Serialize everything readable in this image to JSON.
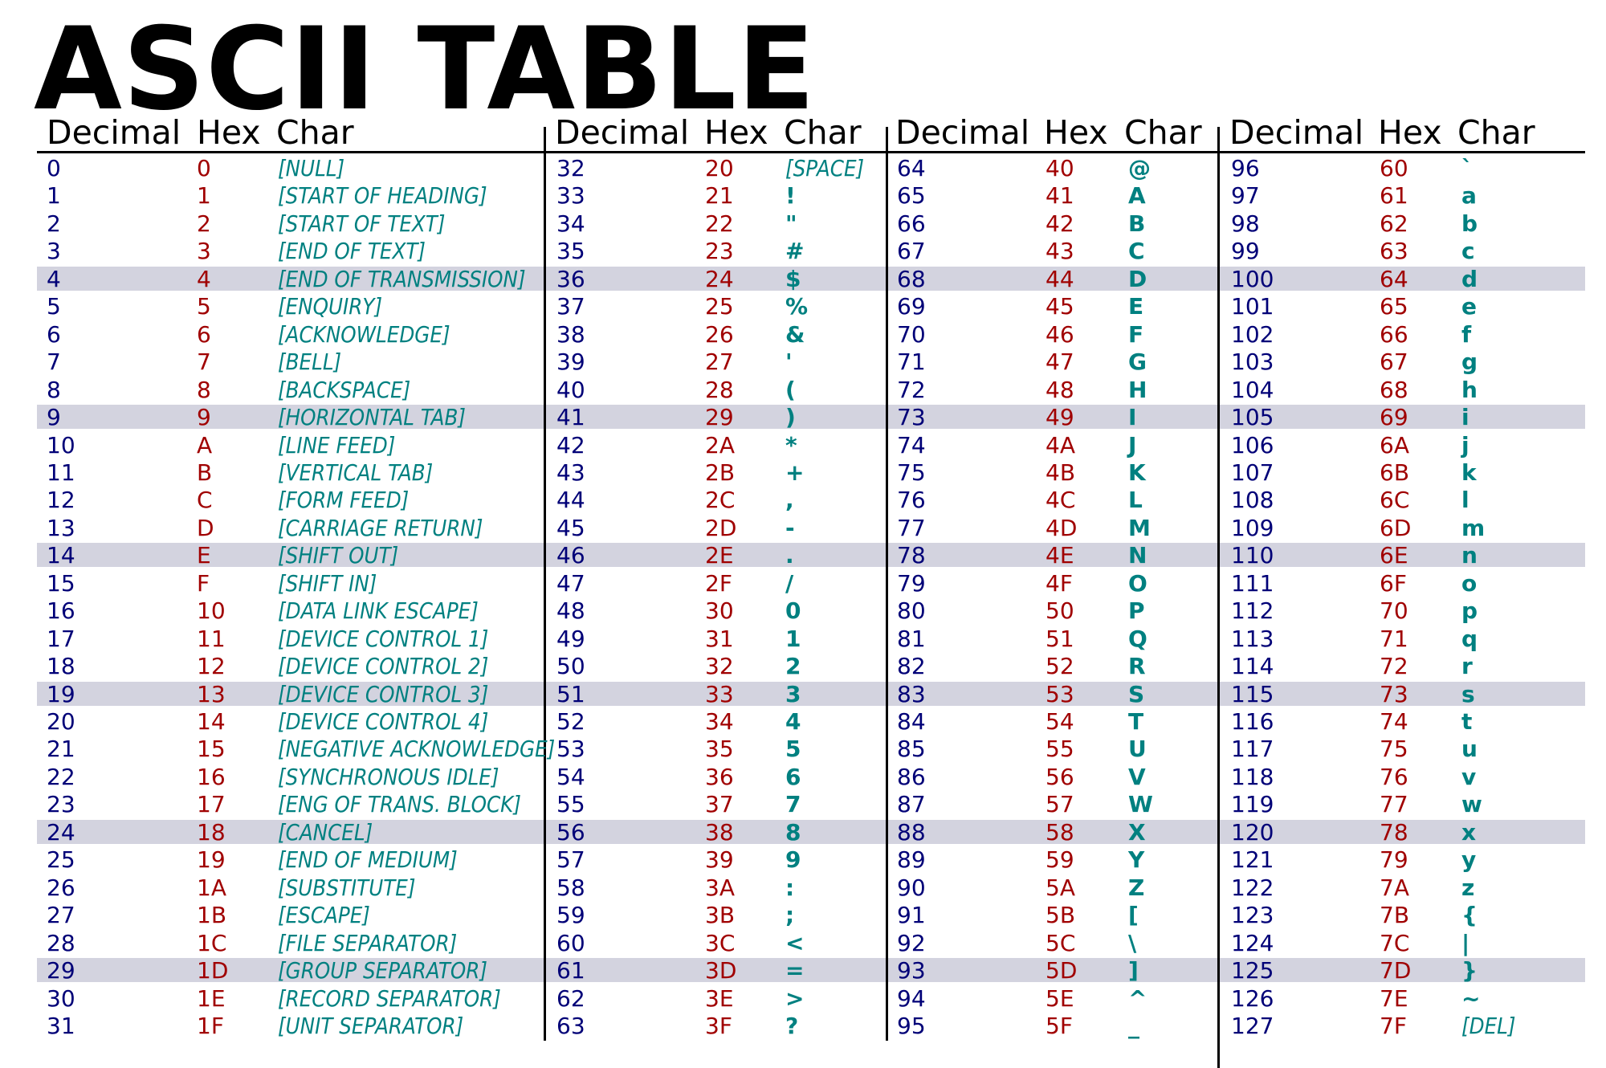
{
  "title": "ASCII TABLE",
  "colors": {
    "decimal": "#000077",
    "hex": "#a00000",
    "char": "#008080",
    "stripe": "#d3d3df"
  },
  "headers": [
    {
      "decimal": "Decimal",
      "hex": "Hex",
      "char": "Char"
    },
    {
      "decimal": "Decimal",
      "hex": "Hex",
      "char": "Char"
    },
    {
      "decimal": "Decimal",
      "hex": "Hex",
      "char": "Char"
    },
    {
      "decimal": "Decimal",
      "hex": "Hex",
      "char": "Char"
    }
  ],
  "groups": [
    [
      {
        "dec": "0",
        "hex": "0",
        "chr": "[NULL]"
      },
      {
        "dec": "1",
        "hex": "1",
        "chr": "[START OF HEADING]"
      },
      {
        "dec": "2",
        "hex": "2",
        "chr": "[START OF TEXT]"
      },
      {
        "dec": "3",
        "hex": "3",
        "chr": "[END OF TEXT]"
      },
      {
        "dec": "4",
        "hex": "4",
        "chr": "[END OF TRANSMISSION]"
      },
      {
        "dec": "5",
        "hex": "5",
        "chr": "[ENQUIRY]"
      },
      {
        "dec": "6",
        "hex": "6",
        "chr": "[ACKNOWLEDGE]"
      },
      {
        "dec": "7",
        "hex": "7",
        "chr": "[BELL]"
      },
      {
        "dec": "8",
        "hex": "8",
        "chr": "[BACKSPACE]"
      },
      {
        "dec": "9",
        "hex": "9",
        "chr": "[HORIZONTAL TAB]"
      },
      {
        "dec": "10",
        "hex": "A",
        "chr": "[LINE FEED]"
      },
      {
        "dec": "11",
        "hex": "B",
        "chr": "[VERTICAL TAB]"
      },
      {
        "dec": "12",
        "hex": "C",
        "chr": "[FORM FEED]"
      },
      {
        "dec": "13",
        "hex": "D",
        "chr": "[CARRIAGE RETURN]"
      },
      {
        "dec": "14",
        "hex": "E",
        "chr": "[SHIFT OUT]"
      },
      {
        "dec": "15",
        "hex": "F",
        "chr": "[SHIFT IN]"
      },
      {
        "dec": "16",
        "hex": "10",
        "chr": "[DATA LINK ESCAPE]"
      },
      {
        "dec": "17",
        "hex": "11",
        "chr": "[DEVICE CONTROL 1]"
      },
      {
        "dec": "18",
        "hex": "12",
        "chr": "[DEVICE CONTROL 2]"
      },
      {
        "dec": "19",
        "hex": "13",
        "chr": "[DEVICE CONTROL 3]"
      },
      {
        "dec": "20",
        "hex": "14",
        "chr": "[DEVICE CONTROL 4]"
      },
      {
        "dec": "21",
        "hex": "15",
        "chr": "[NEGATIVE ACKNOWLEDGE]"
      },
      {
        "dec": "22",
        "hex": "16",
        "chr": "[SYNCHRONOUS IDLE]"
      },
      {
        "dec": "23",
        "hex": "17",
        "chr": "[ENG OF TRANS. BLOCK]"
      },
      {
        "dec": "24",
        "hex": "18",
        "chr": "[CANCEL]"
      },
      {
        "dec": "25",
        "hex": "19",
        "chr": "[END OF MEDIUM]"
      },
      {
        "dec": "26",
        "hex": "1A",
        "chr": "[SUBSTITUTE]"
      },
      {
        "dec": "27",
        "hex": "1B",
        "chr": "[ESCAPE]"
      },
      {
        "dec": "28",
        "hex": "1C",
        "chr": "[FILE SEPARATOR]"
      },
      {
        "dec": "29",
        "hex": "1D",
        "chr": "[GROUP SEPARATOR]"
      },
      {
        "dec": "30",
        "hex": "1E",
        "chr": "[RECORD SEPARATOR]"
      },
      {
        "dec": "31",
        "hex": "1F",
        "chr": "[UNIT SEPARATOR]"
      }
    ],
    [
      {
        "dec": "32",
        "hex": "20",
        "chr": "[SPACE]"
      },
      {
        "dec": "33",
        "hex": "21",
        "chr": "!"
      },
      {
        "dec": "34",
        "hex": "22",
        "chr": "\""
      },
      {
        "dec": "35",
        "hex": "23",
        "chr": "#"
      },
      {
        "dec": "36",
        "hex": "24",
        "chr": "$"
      },
      {
        "dec": "37",
        "hex": "25",
        "chr": "%"
      },
      {
        "dec": "38",
        "hex": "26",
        "chr": "&"
      },
      {
        "dec": "39",
        "hex": "27",
        "chr": "'"
      },
      {
        "dec": "40",
        "hex": "28",
        "chr": "("
      },
      {
        "dec": "41",
        "hex": "29",
        "chr": ")"
      },
      {
        "dec": "42",
        "hex": "2A",
        "chr": "*"
      },
      {
        "dec": "43",
        "hex": "2B",
        "chr": "+"
      },
      {
        "dec": "44",
        "hex": "2C",
        "chr": ","
      },
      {
        "dec": "45",
        "hex": "2D",
        "chr": "-"
      },
      {
        "dec": "46",
        "hex": "2E",
        "chr": "."
      },
      {
        "dec": "47",
        "hex": "2F",
        "chr": "/"
      },
      {
        "dec": "48",
        "hex": "30",
        "chr": "0"
      },
      {
        "dec": "49",
        "hex": "31",
        "chr": "1"
      },
      {
        "dec": "50",
        "hex": "32",
        "chr": "2"
      },
      {
        "dec": "51",
        "hex": "33",
        "chr": "3"
      },
      {
        "dec": "52",
        "hex": "34",
        "chr": "4"
      },
      {
        "dec": "53",
        "hex": "35",
        "chr": "5"
      },
      {
        "dec": "54",
        "hex": "36",
        "chr": "6"
      },
      {
        "dec": "55",
        "hex": "37",
        "chr": "7"
      },
      {
        "dec": "56",
        "hex": "38",
        "chr": "8"
      },
      {
        "dec": "57",
        "hex": "39",
        "chr": "9"
      },
      {
        "dec": "58",
        "hex": "3A",
        "chr": ":"
      },
      {
        "dec": "59",
        "hex": "3B",
        "chr": ";"
      },
      {
        "dec": "60",
        "hex": "3C",
        "chr": "<"
      },
      {
        "dec": "61",
        "hex": "3D",
        "chr": "="
      },
      {
        "dec": "62",
        "hex": "3E",
        "chr": ">"
      },
      {
        "dec": "63",
        "hex": "3F",
        "chr": "?"
      }
    ],
    [
      {
        "dec": "64",
        "hex": "40",
        "chr": "@"
      },
      {
        "dec": "65",
        "hex": "41",
        "chr": "A"
      },
      {
        "dec": "66",
        "hex": "42",
        "chr": "B"
      },
      {
        "dec": "67",
        "hex": "43",
        "chr": "C"
      },
      {
        "dec": "68",
        "hex": "44",
        "chr": "D"
      },
      {
        "dec": "69",
        "hex": "45",
        "chr": "E"
      },
      {
        "dec": "70",
        "hex": "46",
        "chr": "F"
      },
      {
        "dec": "71",
        "hex": "47",
        "chr": "G"
      },
      {
        "dec": "72",
        "hex": "48",
        "chr": "H"
      },
      {
        "dec": "73",
        "hex": "49",
        "chr": "I"
      },
      {
        "dec": "74",
        "hex": "4A",
        "chr": "J"
      },
      {
        "dec": "75",
        "hex": "4B",
        "chr": "K"
      },
      {
        "dec": "76",
        "hex": "4C",
        "chr": "L"
      },
      {
        "dec": "77",
        "hex": "4D",
        "chr": "M"
      },
      {
        "dec": "78",
        "hex": "4E",
        "chr": "N"
      },
      {
        "dec": "79",
        "hex": "4F",
        "chr": "O"
      },
      {
        "dec": "80",
        "hex": "50",
        "chr": "P"
      },
      {
        "dec": "81",
        "hex": "51",
        "chr": "Q"
      },
      {
        "dec": "82",
        "hex": "52",
        "chr": "R"
      },
      {
        "dec": "83",
        "hex": "53",
        "chr": "S"
      },
      {
        "dec": "84",
        "hex": "54",
        "chr": "T"
      },
      {
        "dec": "85",
        "hex": "55",
        "chr": "U"
      },
      {
        "dec": "86",
        "hex": "56",
        "chr": "V"
      },
      {
        "dec": "87",
        "hex": "57",
        "chr": "W"
      },
      {
        "dec": "88",
        "hex": "58",
        "chr": "X"
      },
      {
        "dec": "89",
        "hex": "59",
        "chr": "Y"
      },
      {
        "dec": "90",
        "hex": "5A",
        "chr": "Z"
      },
      {
        "dec": "91",
        "hex": "5B",
        "chr": "["
      },
      {
        "dec": "92",
        "hex": "5C",
        "chr": "\\"
      },
      {
        "dec": "93",
        "hex": "5D",
        "chr": "]"
      },
      {
        "dec": "94",
        "hex": "5E",
        "chr": "^"
      },
      {
        "dec": "95",
        "hex": "5F",
        "chr": "_"
      }
    ],
    [
      {
        "dec": "96",
        "hex": "60",
        "chr": "`"
      },
      {
        "dec": "97",
        "hex": "61",
        "chr": "a"
      },
      {
        "dec": "98",
        "hex": "62",
        "chr": "b"
      },
      {
        "dec": "99",
        "hex": "63",
        "chr": "c"
      },
      {
        "dec": "100",
        "hex": "64",
        "chr": "d"
      },
      {
        "dec": "101",
        "hex": "65",
        "chr": "e"
      },
      {
        "dec": "102",
        "hex": "66",
        "chr": "f"
      },
      {
        "dec": "103",
        "hex": "67",
        "chr": "g"
      },
      {
        "dec": "104",
        "hex": "68",
        "chr": "h"
      },
      {
        "dec": "105",
        "hex": "69",
        "chr": "i"
      },
      {
        "dec": "106",
        "hex": "6A",
        "chr": "j"
      },
      {
        "dec": "107",
        "hex": "6B",
        "chr": "k"
      },
      {
        "dec": "108",
        "hex": "6C",
        "chr": "l"
      },
      {
        "dec": "109",
        "hex": "6D",
        "chr": "m"
      },
      {
        "dec": "110",
        "hex": "6E",
        "chr": "n"
      },
      {
        "dec": "111",
        "hex": "6F",
        "chr": "o"
      },
      {
        "dec": "112",
        "hex": "70",
        "chr": "p"
      },
      {
        "dec": "113",
        "hex": "71",
        "chr": "q"
      },
      {
        "dec": "114",
        "hex": "72",
        "chr": "r"
      },
      {
        "dec": "115",
        "hex": "73",
        "chr": "s"
      },
      {
        "dec": "116",
        "hex": "74",
        "chr": "t"
      },
      {
        "dec": "117",
        "hex": "75",
        "chr": "u"
      },
      {
        "dec": "118",
        "hex": "76",
        "chr": "v"
      },
      {
        "dec": "119",
        "hex": "77",
        "chr": "w"
      },
      {
        "dec": "120",
        "hex": "78",
        "chr": "x"
      },
      {
        "dec": "121",
        "hex": "79",
        "chr": "y"
      },
      {
        "dec": "122",
        "hex": "7A",
        "chr": "z"
      },
      {
        "dec": "123",
        "hex": "7B",
        "chr": "{"
      },
      {
        "dec": "124",
        "hex": "7C",
        "chr": "|"
      },
      {
        "dec": "125",
        "hex": "7D",
        "chr": "}"
      },
      {
        "dec": "126",
        "hex": "7E",
        "chr": "~"
      },
      {
        "dec": "127",
        "hex": "7F",
        "chr": "[DEL]"
      }
    ]
  ]
}
